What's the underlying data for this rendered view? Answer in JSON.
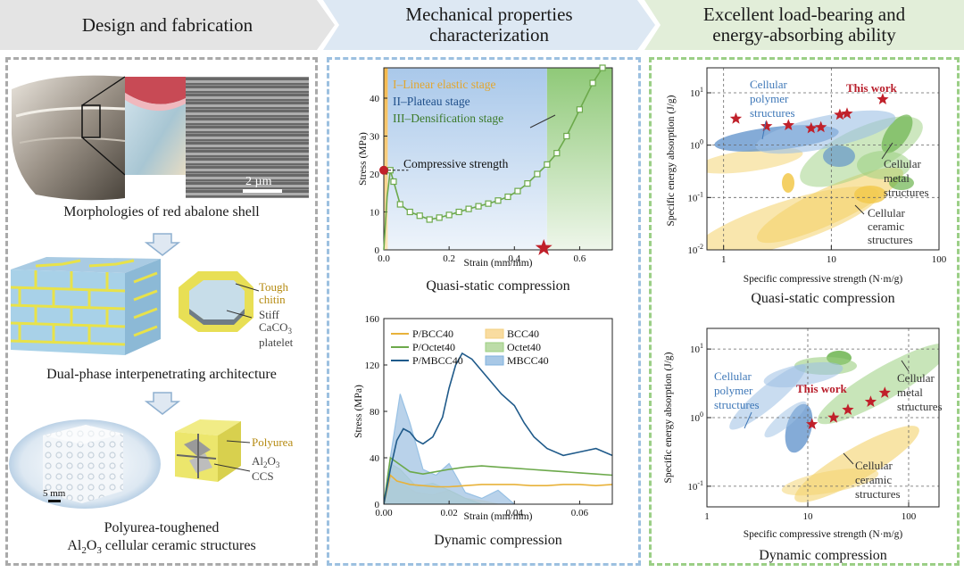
{
  "headers": {
    "design": "Design and fabrication",
    "mech_line1": "Mechanical properties",
    "mech_line2": "characterization",
    "load_line1": "Excellent  load-bearing and",
    "load_line2": "energy-absorbing ability"
  },
  "left": {
    "scale_bar": "2 µm",
    "caption_shell": "Morphologies of red abalone shell",
    "tough_line1": "Tough",
    "tough_line2": "chitin",
    "stiff_line1": "Stiff",
    "stiff_line2": "CaCO",
    "stiff_sub": "3",
    "stiff_line3": "platelet",
    "caption_arch": "Dual-phase interpenetrating architecture",
    "polyurea": "Polyurea",
    "al2o3_a": "Al",
    "al2o3_sub1": "2",
    "al2o3_b": "O",
    "al2o3_sub2": "3",
    "ccs": "CCS",
    "scale_5mm": "5 mm",
    "caption_final_line1": "Polyurea-toughened",
    "caption_final_a": "Al",
    "caption_final_sub1": "2",
    "caption_final_b": "O",
    "caption_final_sub2": "3",
    "caption_final_c": " cellular ceramic structures"
  },
  "colors": {
    "stage1": "#f7c257",
    "stage2": "#bcd5ee",
    "stage3": "#9bcf80",
    "curve_green": "#6ca94b",
    "curve_orange": "#e8b23a",
    "curve_navy": "#1f5a8a",
    "star_red": "#c0202a",
    "blob_blue": "#5b8fc9",
    "blob_green": "#6cb44f",
    "blob_yellow": "#f4d26a"
  },
  "chart_data": [
    {
      "type": "line",
      "title": "Quasi-static compression",
      "xlabel": "Strain (mm/mm)",
      "ylabel": "Stress (MPa)",
      "xlim": [
        0,
        0.7
      ],
      "ylim": [
        0,
        48
      ],
      "xticks": [
        "0.0",
        "0.2",
        "0.4",
        "0.6"
      ],
      "yticks": [
        "0",
        "10",
        "20",
        "30",
        "40"
      ],
      "stages": [
        "I–Linear elastic stage",
        "II–Plateau stage",
        "III–Densification stage"
      ],
      "annotation": "Compressive strength",
      "compressive_strength": 21,
      "series": [
        {
          "name": "stress-strain",
          "x": [
            0,
            0.01,
            0.02,
            0.03,
            0.05,
            0.08,
            0.11,
            0.14,
            0.17,
            0.2,
            0.23,
            0.26,
            0.29,
            0.32,
            0.35,
            0.38,
            0.41,
            0.44,
            0.47,
            0.5,
            0.53,
            0.56,
            0.6,
            0.64,
            0.67
          ],
          "y": [
            0,
            14,
            21,
            18,
            12,
            10,
            9,
            8,
            8.5,
            9.2,
            10,
            10.8,
            11.5,
            12.2,
            13,
            14,
            15.5,
            17.5,
            20,
            22.5,
            25.5,
            30,
            37,
            44,
            48
          ]
        }
      ]
    },
    {
      "type": "line",
      "title": "Dynamic compression",
      "xlabel": "Strain (mm/mm)",
      "ylabel": "Stress (MPa)",
      "xlim": [
        0,
        0.07
      ],
      "ylim": [
        0,
        160
      ],
      "xticks": [
        "0.00",
        "0.02",
        "0.04",
        "0.06"
      ],
      "yticks": [
        "0",
        "40",
        "80",
        "120",
        "160"
      ],
      "legend": [
        "P/BCC40",
        "P/Octet40",
        "P/MBCC40",
        "BCC40",
        "Octet40",
        "MBCC40"
      ],
      "series": [
        {
          "name": "P/BCC40",
          "x": [
            0,
            0.002,
            0.004,
            0.008,
            0.012,
            0.016,
            0.02,
            0.025,
            0.03,
            0.035,
            0.04,
            0.045,
            0.05,
            0.055,
            0.06,
            0.065,
            0.07
          ],
          "y": [
            0,
            25,
            20,
            17,
            16,
            15,
            15,
            16,
            17,
            17,
            17,
            16,
            16,
            17,
            17,
            16,
            17
          ]
        },
        {
          "name": "P/Octet40",
          "x": [
            0,
            0.002,
            0.004,
            0.008,
            0.012,
            0.016,
            0.02,
            0.025,
            0.03,
            0.035,
            0.04,
            0.045,
            0.05,
            0.055,
            0.06,
            0.065,
            0.07
          ],
          "y": [
            0,
            40,
            36,
            28,
            26,
            28,
            30,
            32,
            33,
            32,
            31,
            30,
            29,
            28,
            27,
            26,
            25
          ]
        },
        {
          "name": "P/MBCC40",
          "x": [
            0,
            0.002,
            0.004,
            0.006,
            0.008,
            0.01,
            0.012,
            0.015,
            0.018,
            0.02,
            0.022,
            0.024,
            0.027,
            0.03,
            0.033,
            0.036,
            0.04,
            0.043,
            0.046,
            0.05,
            0.055,
            0.06,
            0.065,
            0.07
          ],
          "y": [
            0,
            30,
            55,
            65,
            62,
            55,
            52,
            58,
            75,
            100,
            120,
            130,
            125,
            115,
            105,
            95,
            85,
            70,
            58,
            48,
            42,
            45,
            48,
            42
          ]
        },
        {
          "name": "BCC40",
          "x": [
            0,
            0.002,
            0.005,
            0.01,
            0.015,
            0.02,
            0.025,
            0.03,
            0.035
          ],
          "y": [
            0,
            20,
            18,
            10,
            8,
            12,
            5,
            3,
            0
          ]
        },
        {
          "name": "Octet40",
          "x": [
            0,
            0.002,
            0.005,
            0.01,
            0.015,
            0.02,
            0.025,
            0.03
          ],
          "y": [
            0,
            35,
            30,
            15,
            18,
            12,
            5,
            0
          ]
        },
        {
          "name": "MBCC40",
          "x": [
            0,
            0.002,
            0.005,
            0.008,
            0.012,
            0.016,
            0.02,
            0.025,
            0.03,
            0.035,
            0.04
          ],
          "y": [
            0,
            40,
            95,
            70,
            30,
            25,
            35,
            10,
            5,
            12,
            0
          ]
        }
      ]
    },
    {
      "type": "scatter",
      "title": "Quasi-static compression",
      "xlabel": "Specific compressive strength (N·m/g)",
      "ylabel": "Specific energy absorption (J/g)",
      "xscale": "log",
      "yscale": "log",
      "xlim": [
        0.7,
        100
      ],
      "ylim": [
        0.01,
        30
      ],
      "xticks": [
        "1",
        "10",
        "100"
      ],
      "yticks": [
        "10^-2",
        "10^-1",
        "10^0",
        "10^1"
      ],
      "labels": [
        "Cellular polymer structures",
        "Cellular metal structures",
        "Cellular ceramic structures",
        "This work"
      ],
      "this_work": {
        "x": [
          1.3,
          2.5,
          4,
          6.5,
          8,
          12,
          14,
          30
        ],
        "y": [
          3.2,
          2.3,
          2.4,
          2.1,
          2.2,
          3.8,
          4,
          7.5
        ]
      }
    },
    {
      "type": "scatter",
      "title": "Dynamic compression",
      "xlabel": "Specific compressive strength (N·m/g)",
      "ylabel": "Specific energy absorption (J/g)",
      "xscale": "log",
      "yscale": "log",
      "xlim": [
        1,
        200
      ],
      "ylim": [
        0.05,
        20
      ],
      "xticks": [
        "1",
        "10",
        "100"
      ],
      "yticks": [
        "10^-1",
        "10^0",
        "10^1"
      ],
      "labels": [
        "Cellular polymer structures",
        "Cellular metal structures",
        "Cellular ceramic structures",
        "This work"
      ],
      "this_work": {
        "x": [
          11,
          18,
          25,
          42,
          58
        ],
        "y": [
          0.8,
          1.0,
          1.3,
          1.7,
          2.3
        ]
      }
    }
  ]
}
